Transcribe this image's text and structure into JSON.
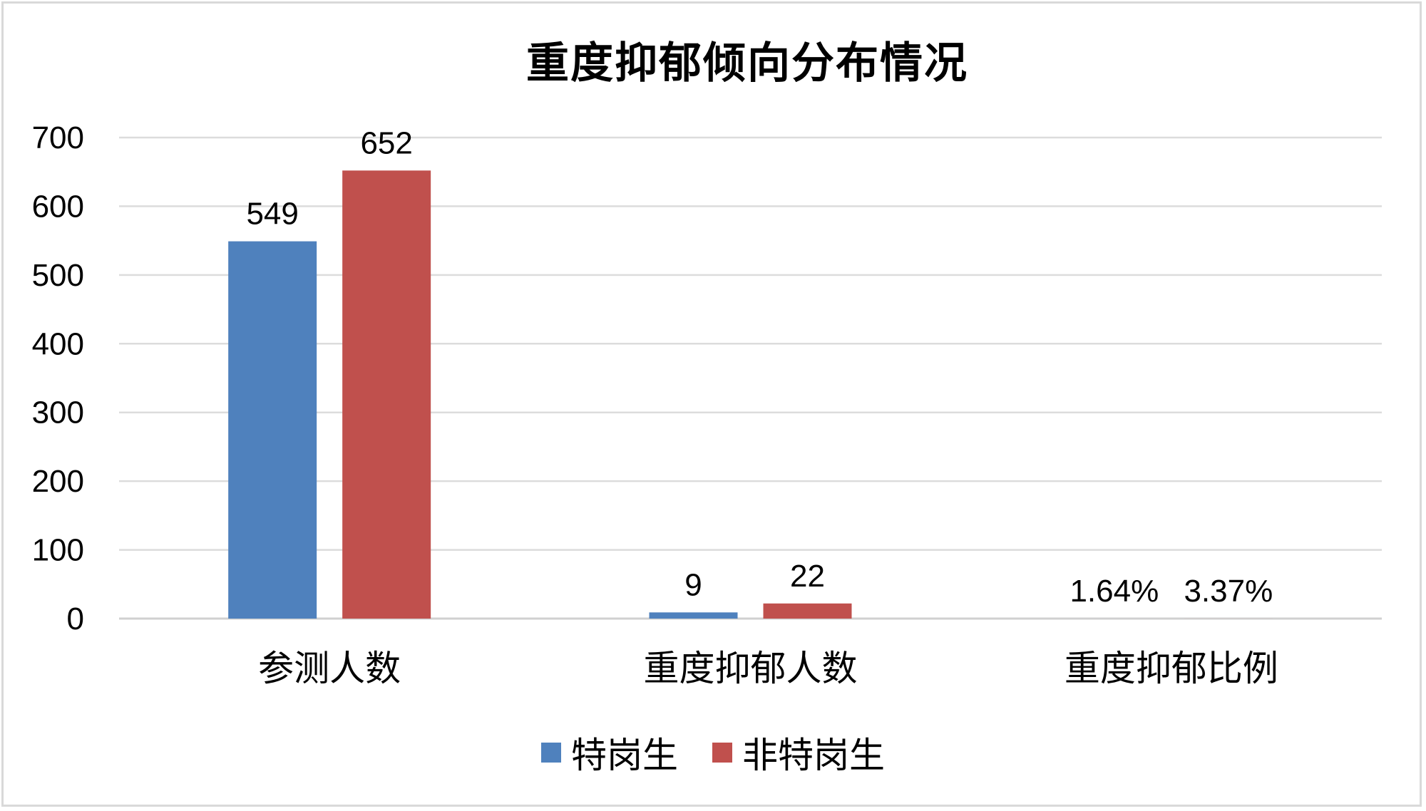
{
  "chart_data": {
    "type": "bar",
    "title": "重度抑郁倾向分布情况",
    "categories": [
      "参测人数",
      "重度抑郁人数",
      "重度抑郁比例"
    ],
    "ylim": [
      0,
      700
    ],
    "yticks": [
      0,
      100,
      200,
      300,
      400,
      500,
      600,
      700
    ],
    "grid": true,
    "legend_position": "bottom",
    "series": [
      {
        "name": "特岗生",
        "color": "#4f81bd",
        "values": [
          549,
          9,
          0.0164
        ],
        "labels": [
          "549",
          "9",
          "1.64%"
        ]
      },
      {
        "name": "非特岗生",
        "color": "#c0504d",
        "values": [
          652,
          22,
          0.0337
        ],
        "labels": [
          "652",
          "22",
          "3.37%"
        ]
      }
    ]
  }
}
